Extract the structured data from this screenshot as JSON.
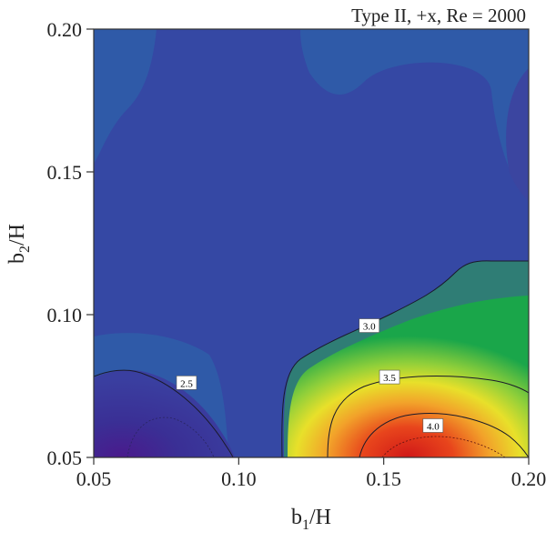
{
  "chart_data": {
    "type": "contour",
    "title": "Type II, +x, Re = 2000",
    "xlabel": {
      "main": "b",
      "sub": "1",
      "tail": "/H"
    },
    "ylabel": {
      "main": "b",
      "sub": "2",
      "tail": "/H"
    },
    "xlim": [
      0.05,
      0.2
    ],
    "ylim": [
      0.05,
      0.2
    ],
    "x_ticks": [
      0.05,
      0.1,
      0.15,
      0.2
    ],
    "y_ticks": [
      0.05,
      0.1,
      0.15,
      0.2
    ],
    "x_tick_labels": [
      "0.05",
      "0.10",
      "0.15",
      "0.20"
    ],
    "y_tick_labels": [
      "0.05",
      "0.10",
      "0.15",
      "0.20"
    ],
    "grid": false,
    "colormap": [
      "#3b2a8c",
      "#3845a3",
      "#2f7d75",
      "#1aa64a",
      "#8fcf3a",
      "#e8e02a",
      "#f2a22a",
      "#e43a1e",
      "#d01818"
    ],
    "contour_levels": [
      2.5,
      3.0,
      3.5,
      4.0
    ],
    "contour_labels": [
      {
        "text": "2.5",
        "x": 0.082,
        "y": 0.076
      },
      {
        "text": "3.0",
        "x": 0.145,
        "y": 0.096
      },
      {
        "text": "3.5",
        "x": 0.152,
        "y": 0.078
      },
      {
        "text": "4.0",
        "x": 0.167,
        "y": 0.061
      }
    ],
    "value_summary": {
      "background": "~2.7 (blue)",
      "min_region": "lower-left, below 2.5",
      "max_region": "lower-right near b1/H=0.16–0.17, b2/H=0.05, above 4.0"
    }
  }
}
